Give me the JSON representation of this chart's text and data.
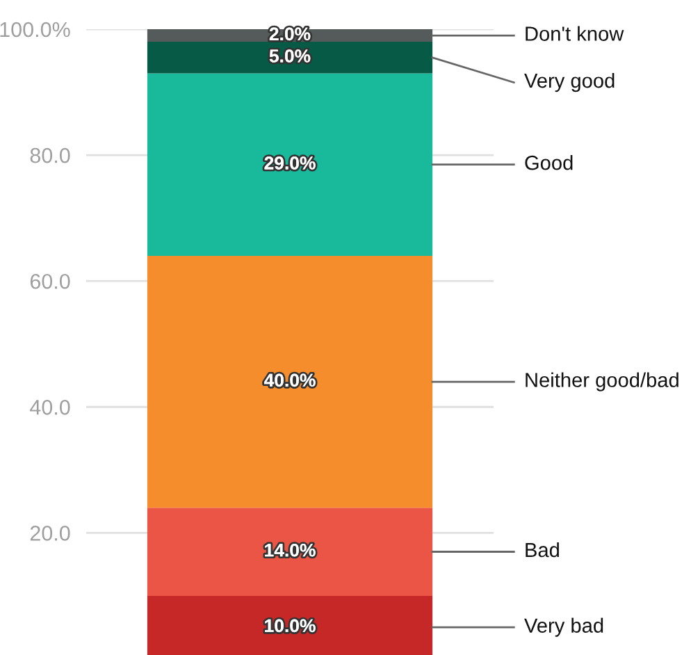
{
  "chart_data": {
    "type": "bar",
    "stacked": true,
    "categories": [
      null
    ],
    "series": [
      {
        "name": "Very bad",
        "color": "#c62828",
        "values": [
          10
        ],
        "value_labels": [
          "10.0%"
        ]
      },
      {
        "name": "Bad",
        "color": "#eb5545",
        "values": [
          14
        ],
        "value_labels": [
          "14.0%"
        ]
      },
      {
        "name": "Neither good/bad",
        "color": "#f58d2c",
        "values": [
          40
        ],
        "value_labels": [
          "40.0%"
        ]
      },
      {
        "name": "Good",
        "color": "#19b99b",
        "values": [
          29
        ],
        "value_labels": [
          "29.0%"
        ]
      },
      {
        "name": "Very good",
        "color": "#075a45",
        "values": [
          5
        ],
        "value_labels": [
          "5.0%"
        ]
      },
      {
        "name": "Don't know",
        "color": "#555a5a",
        "values": [
          2
        ],
        "value_labels": [
          "2.0%"
        ]
      }
    ],
    "ylim": [
      0.6,
      100
    ],
    "yticks": [
      {
        "value": 20,
        "label": "20.0"
      },
      {
        "value": 40,
        "label": "40.0"
      },
      {
        "value": 60,
        "label": "60.0"
      },
      {
        "value": 80,
        "label": "80.0"
      },
      {
        "value": 100,
        "label": "100.0%"
      }
    ],
    "grid": "y",
    "legend": false
  }
}
